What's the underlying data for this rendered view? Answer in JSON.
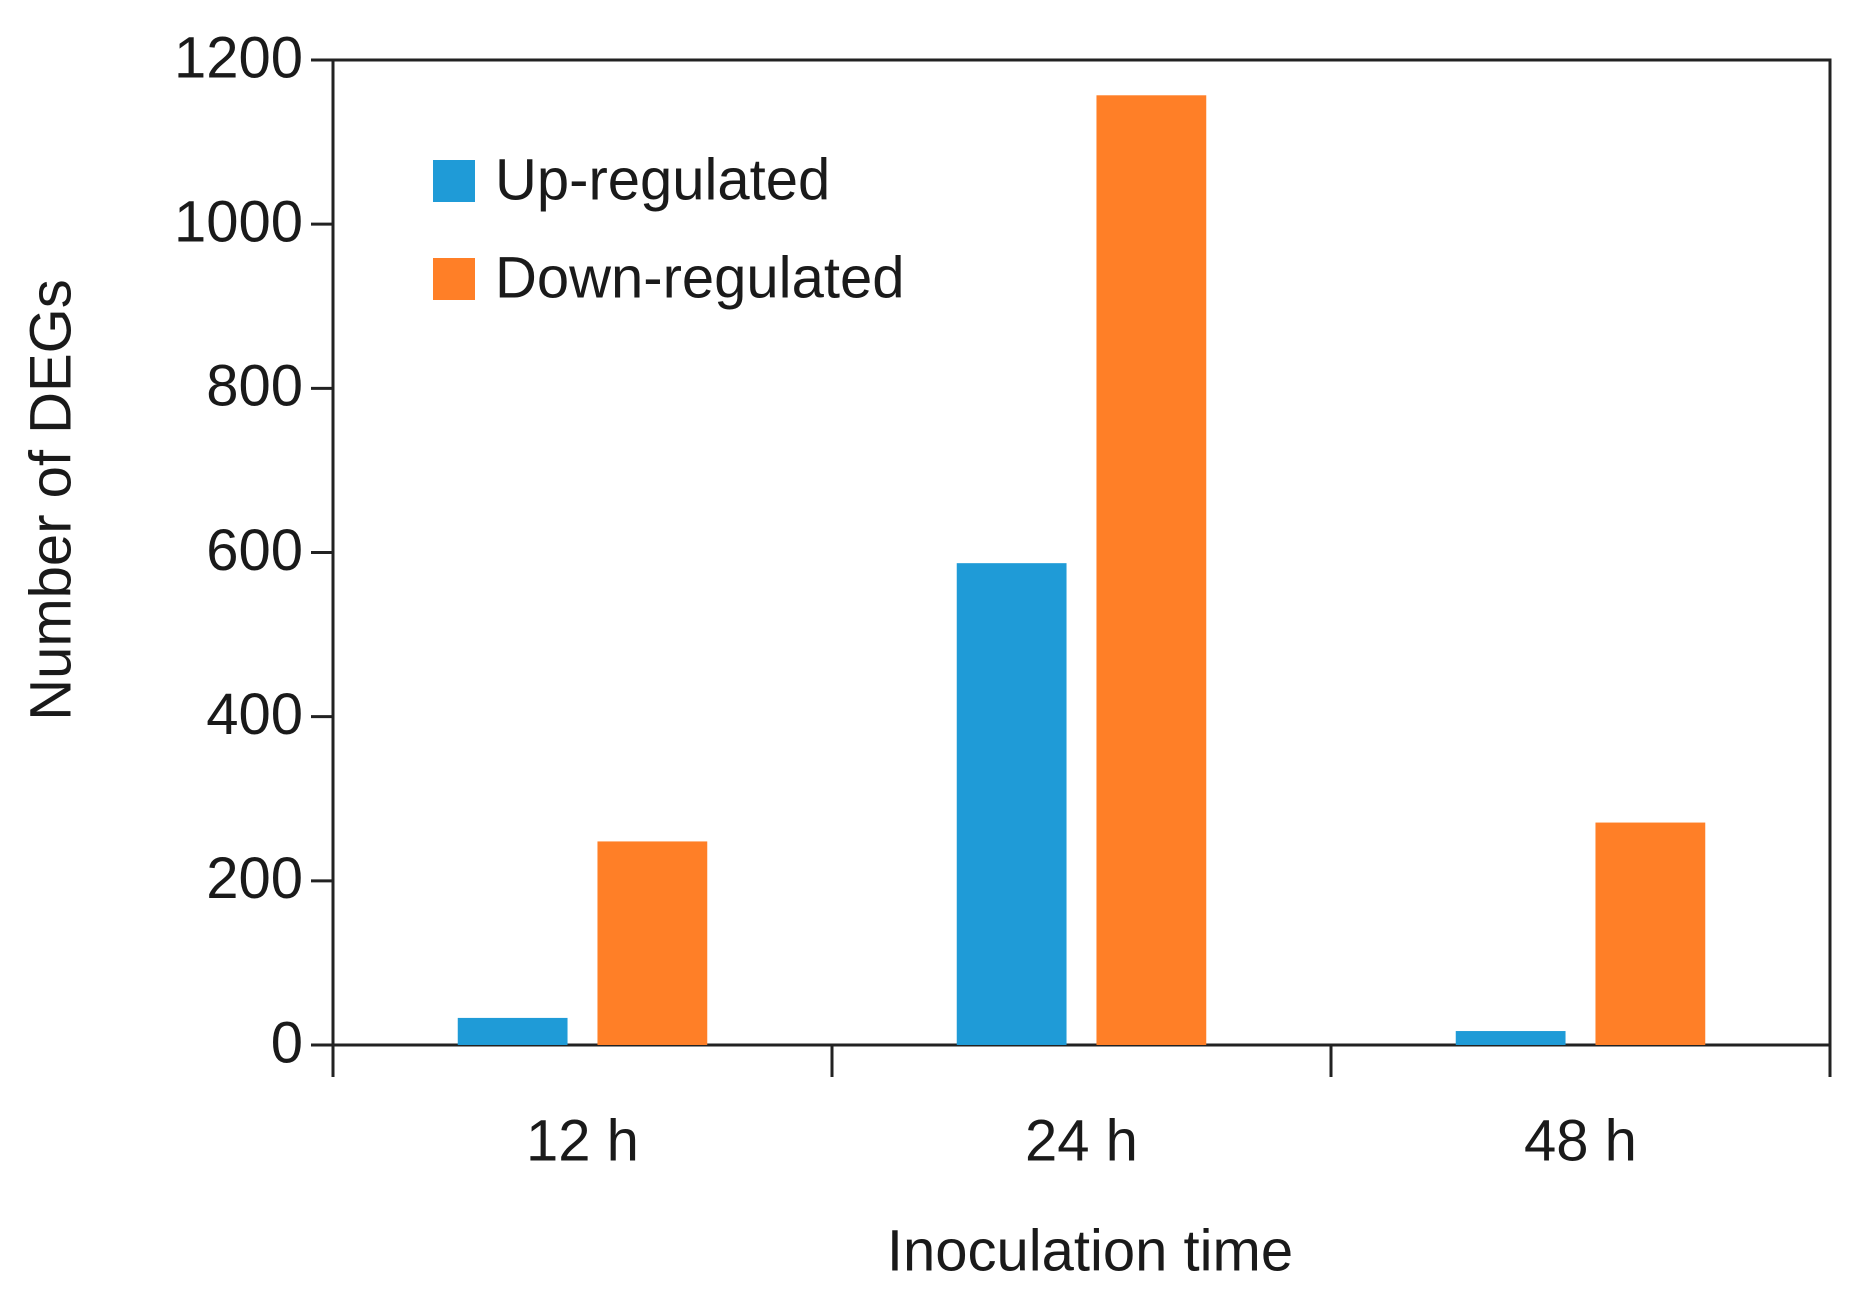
{
  "chart_data": {
    "type": "bar",
    "x_label": "Inoculation time",
    "y_label": "Number of DEGs",
    "categories": [
      "12 h",
      "24 h",
      "48 h"
    ],
    "series": [
      {
        "name": "Up-regulated",
        "color": "#1f9bd7",
        "values": [
          33,
          587,
          17
        ]
      },
      {
        "name": "Down-regulated",
        "color": "#ff7f27",
        "values": [
          248,
          1157,
          271
        ]
      }
    ],
    "ylim": [
      0,
      1200
    ],
    "yticks": [
      0,
      200,
      400,
      600,
      800,
      1000,
      1200
    ],
    "legend": "upper-left",
    "grid": false
  }
}
